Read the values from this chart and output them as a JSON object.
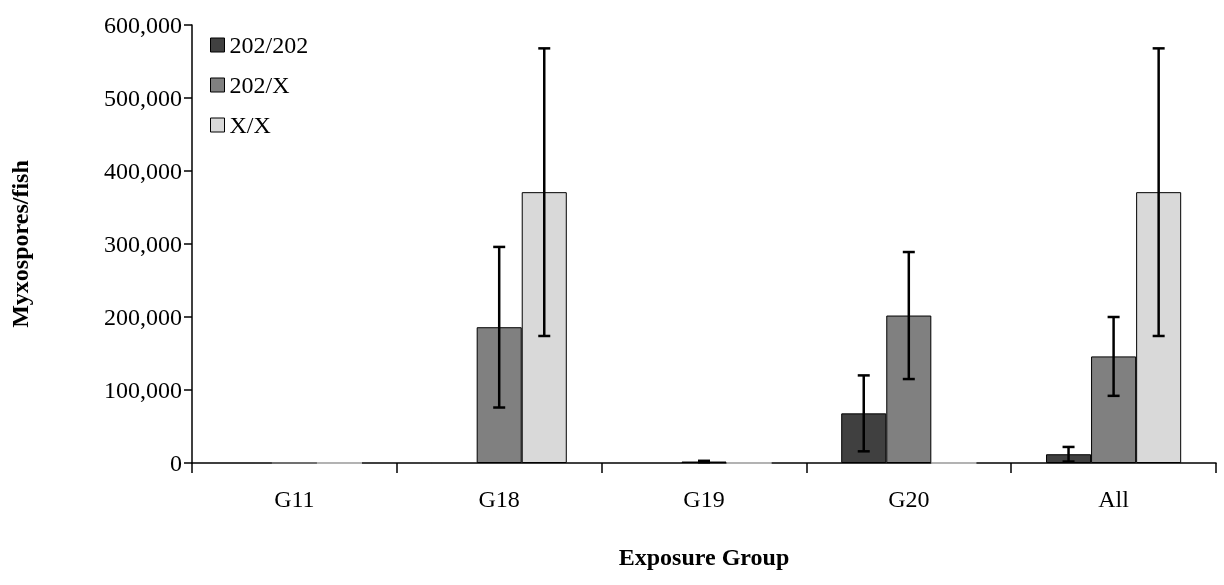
{
  "chart_data": {
    "type": "bar",
    "xlabel": "Exposure Group",
    "ylabel": "Myxospores/fish",
    "categories": [
      "G11",
      "G18",
      "G19",
      "G20",
      "All"
    ],
    "series": [
      {
        "name": "202/202",
        "color": "#404040",
        "values": [
          0,
          1000,
          0,
          68000,
          12000
        ],
        "errors": [
          null,
          null,
          null,
          52000,
          10000
        ]
      },
      {
        "name": "202/X",
        "color": "#808080",
        "values": [
          0,
          186000,
          2000,
          202000,
          146000
        ],
        "errors": [
          null,
          110000,
          1000,
          87000,
          54000
        ]
      },
      {
        "name": "X/X",
        "color": "#d9d9d9",
        "values": [
          0,
          371000,
          0,
          0,
          371000
        ],
        "errors": [
          null,
          197000,
          null,
          null,
          197000
        ]
      }
    ],
    "ylim": [
      0,
      600000
    ],
    "yticks": [
      {
        "value": 0,
        "label": "0"
      },
      {
        "value": 100000,
        "label": "100,000"
      },
      {
        "value": 200000,
        "label": "200,000"
      },
      {
        "value": 300000,
        "label": "300,000"
      },
      {
        "value": 400000,
        "label": "400,000"
      },
      {
        "value": 500000,
        "label": "500,000"
      },
      {
        "value": 600000,
        "label": "600,000"
      }
    ],
    "grid": false,
    "legend": "top left"
  }
}
